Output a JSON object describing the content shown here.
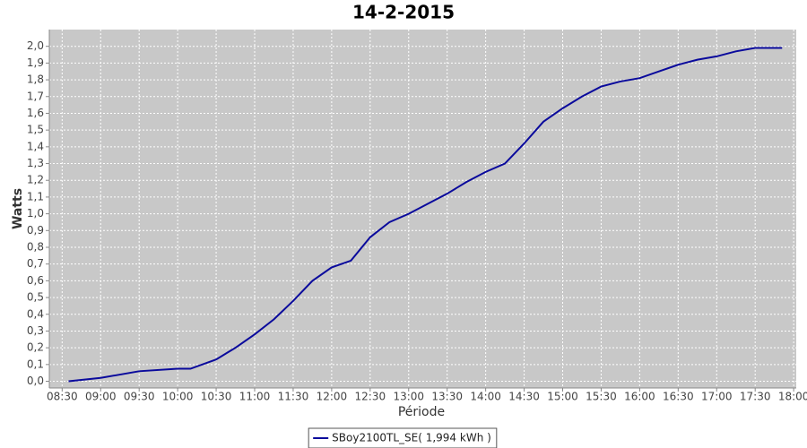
{
  "chart_data": {
    "type": "line",
    "title": "14-2-2015",
    "x_label": "Période",
    "y_label": "Watts",
    "x": [
      "08:35",
      "09:00",
      "09:30",
      "10:00",
      "10:10",
      "10:30",
      "10:45",
      "11:00",
      "11:15",
      "11:30",
      "11:45",
      "12:00",
      "12:15",
      "12:30",
      "12:45",
      "13:00",
      "13:15",
      "13:30",
      "13:45",
      "14:00",
      "14:15",
      "14:30",
      "14:45",
      "15:00",
      "15:15",
      "15:30",
      "15:45",
      "16:00",
      "16:15",
      "16:30",
      "16:45",
      "17:00",
      "17:15",
      "17:30",
      "17:45",
      "17:51"
    ],
    "series": [
      {
        "name": "SBoy2100TL_SE( 1,994 kWh )",
        "color": "#0a0a9c",
        "values": [
          0,
          0.02,
          0.06,
          0.075,
          0.075,
          0.13,
          0.2,
          0.28,
          0.37,
          0.48,
          0.6,
          0.68,
          0.72,
          0.86,
          0.95,
          1.0,
          1.06,
          1.12,
          1.19,
          1.25,
          1.3,
          1.42,
          1.55,
          1.63,
          1.7,
          1.76,
          1.79,
          1.81,
          1.85,
          1.89,
          1.92,
          1.94,
          1.97,
          1.99,
          1.99,
          1.99
        ]
      }
    ],
    "xlim": [
      "08:20",
      "18:02"
    ],
    "xticks": [
      "08:30",
      "09:00",
      "09:30",
      "10:00",
      "10:30",
      "11:00",
      "11:30",
      "12:00",
      "12:30",
      "13:00",
      "13:30",
      "14:00",
      "14:30",
      "15:00",
      "15:30",
      "16:00",
      "16:30",
      "17:00",
      "17:30",
      "18:00"
    ],
    "ylim": [
      -0.04,
      2.1
    ],
    "yticks": [
      {
        "value": 0,
        "label": "0,0"
      },
      {
        "value": 0.1,
        "label": "0,1"
      },
      {
        "value": 0.2,
        "label": "0,2"
      },
      {
        "value": 0.3,
        "label": "0,3"
      },
      {
        "value": 0.4,
        "label": "0,4"
      },
      {
        "value": 0.5,
        "label": "0,5"
      },
      {
        "value": 0.6,
        "label": "0,6"
      },
      {
        "value": 0.7,
        "label": "0,7"
      },
      {
        "value": 0.8,
        "label": "0,8"
      },
      {
        "value": 0.9,
        "label": "0,9"
      },
      {
        "value": 1,
        "label": "1,0"
      },
      {
        "value": 1.1,
        "label": "1,1"
      },
      {
        "value": 1.2,
        "label": "1,2"
      },
      {
        "value": 1.3,
        "label": "1,3"
      },
      {
        "value": 1.4,
        "label": "1,4"
      },
      {
        "value": 1.5,
        "label": "1,5"
      },
      {
        "value": 1.6,
        "label": "1,6"
      },
      {
        "value": 1.7,
        "label": "1,7"
      },
      {
        "value": 1.8,
        "label": "1,8"
      },
      {
        "value": 1.9,
        "label": "1,9"
      },
      {
        "value": 2,
        "label": "2,0"
      }
    ],
    "grid": true
  }
}
